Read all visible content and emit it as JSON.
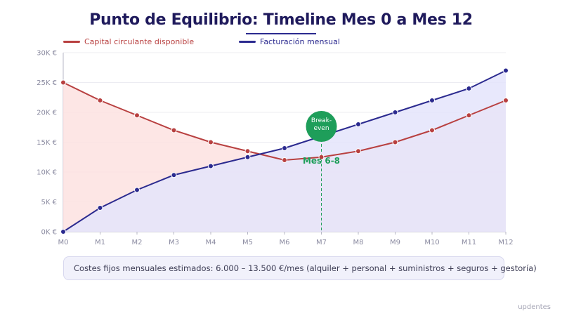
{
  "colors": {
    "title": "#1f1a5c",
    "capital": "#b84040",
    "billing": "#2b2a8f",
    "capital_fill": "#fde2e0",
    "billing_fill": "#e4e4fb",
    "breakeven": "#1e9e5a"
  },
  "legend": {
    "capital": "Capital circulante disponible",
    "billing": "Facturación mensual"
  },
  "note": "Costes fijos mensuales estimados: 6.000 – 13.500 €/mes (alquiler + personal + suministros + seguros + gestoría)",
  "watermark": "updentes",
  "chart_data": {
    "type": "line",
    "title": "Punto de Equilibrio: Timeline Mes 0 a Mes 12",
    "categories": [
      "M0",
      "M1",
      "M2",
      "M3",
      "M4",
      "M5",
      "M6",
      "M7",
      "M8",
      "M9",
      "M10",
      "M11",
      "M12"
    ],
    "series": [
      {
        "name": "Capital circulante disponible",
        "values": [
          25000,
          22000,
          19500,
          17000,
          15000,
          13500,
          12000,
          12500,
          13500,
          15000,
          17000,
          19500,
          22000
        ]
      },
      {
        "name": "Facturación mensual",
        "values": [
          0,
          4000,
          7000,
          9500,
          11000,
          12500,
          14000,
          16000,
          18000,
          20000,
          22000,
          24000,
          27000
        ]
      }
    ],
    "ylim": [
      0,
      30000
    ],
    "yticks": [
      0,
      5000,
      10000,
      15000,
      20000,
      25000,
      30000
    ],
    "ytick_labels": [
      "0K €",
      "5K €",
      "10K €",
      "15K €",
      "20K €",
      "25K €",
      "30K €"
    ],
    "grid": true,
    "legend_position": "top-left",
    "annotation": {
      "badge": [
        "Break-",
        "even"
      ],
      "label": "Mes 6-8",
      "category": "M7"
    }
  }
}
